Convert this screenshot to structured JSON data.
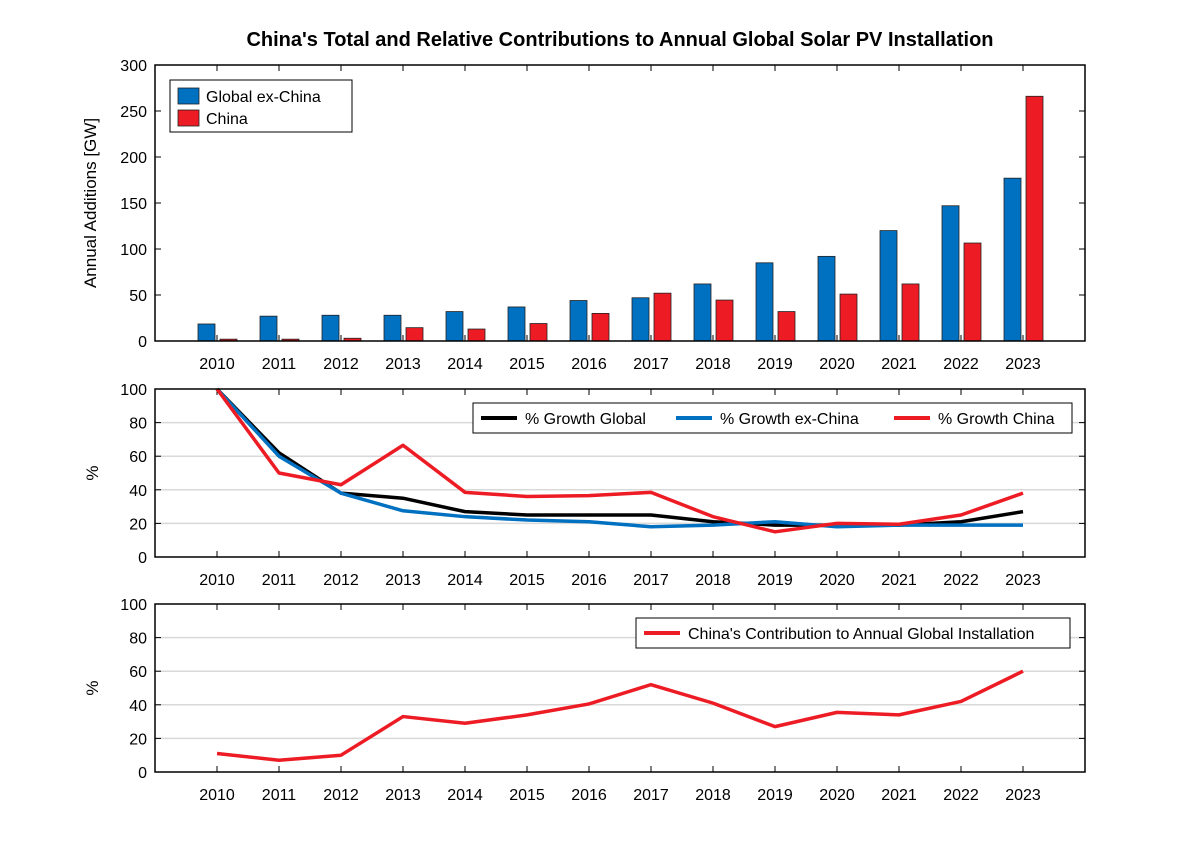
{
  "title": "China's Total and Relative Contributions to Annual Global Solar PV Installation",
  "chart_data": [
    {
      "type": "bar",
      "categories": [
        "2010",
        "2011",
        "2012",
        "2013",
        "2014",
        "2015",
        "2016",
        "2017",
        "2018",
        "2019",
        "2020",
        "2021",
        "2022",
        "2023"
      ],
      "ylabel": "Annual Additions [GW]",
      "ylim": [
        0,
        300
      ],
      "yticks": [
        0,
        50,
        100,
        150,
        200,
        250,
        300
      ],
      "legend_position": "top-left",
      "grid": false,
      "series": [
        {
          "name": "Global ex-China",
          "color": "#0070c0",
          "values": [
            18.5,
            27,
            28,
            28,
            32,
            37,
            44,
            47,
            62,
            85,
            92,
            120,
            147,
            177
          ]
        },
        {
          "name": "China",
          "color": "#ed1c24",
          "values": [
            2,
            2,
            3,
            14.5,
            13,
            19,
            30,
            52,
            44.5,
            32,
            51,
            62,
            106.5,
            266
          ]
        }
      ]
    },
    {
      "type": "line",
      "categories": [
        "2010",
        "2011",
        "2012",
        "2013",
        "2014",
        "2015",
        "2016",
        "2017",
        "2018",
        "2019",
        "2020",
        "2021",
        "2022",
        "2023"
      ],
      "ylabel": "%",
      "ylim": [
        0,
        100
      ],
      "yticks": [
        0,
        20,
        40,
        60,
        80,
        100
      ],
      "legend_position": "top-right",
      "grid": true,
      "series": [
        {
          "name": "% Growth Global",
          "color": "#000000",
          "values": [
            100,
            62,
            38,
            35,
            27,
            25,
            25,
            25,
            21,
            19,
            19,
            19,
            21,
            27
          ]
        },
        {
          "name": "% Growth ex-China",
          "color": "#0070c0",
          "values": [
            100,
            60,
            38,
            27.5,
            24,
            22,
            21,
            18,
            19,
            21,
            18,
            19,
            19,
            19
          ]
        },
        {
          "name": "% Growth China",
          "color": "#ed1c24",
          "values": [
            100,
            50,
            43,
            66.5,
            38.5,
            36,
            36.5,
            38.5,
            24,
            15,
            20,
            19.5,
            25,
            38
          ]
        }
      ]
    },
    {
      "type": "line",
      "categories": [
        "2010",
        "2011",
        "2012",
        "2013",
        "2014",
        "2015",
        "2016",
        "2017",
        "2018",
        "2019",
        "2020",
        "2021",
        "2022",
        "2023"
      ],
      "ylabel": "%",
      "ylim": [
        0,
        100
      ],
      "yticks": [
        0,
        20,
        40,
        60,
        80,
        100
      ],
      "legend_position": "top-right",
      "grid": true,
      "series": [
        {
          "name": "China's Contribution to Annual Global Installation",
          "color": "#ed1c24",
          "values": [
            11,
            7,
            10,
            33,
            29,
            34,
            40.5,
            52,
            41,
            27,
            35.5,
            34,
            42,
            60
          ]
        }
      ]
    }
  ]
}
